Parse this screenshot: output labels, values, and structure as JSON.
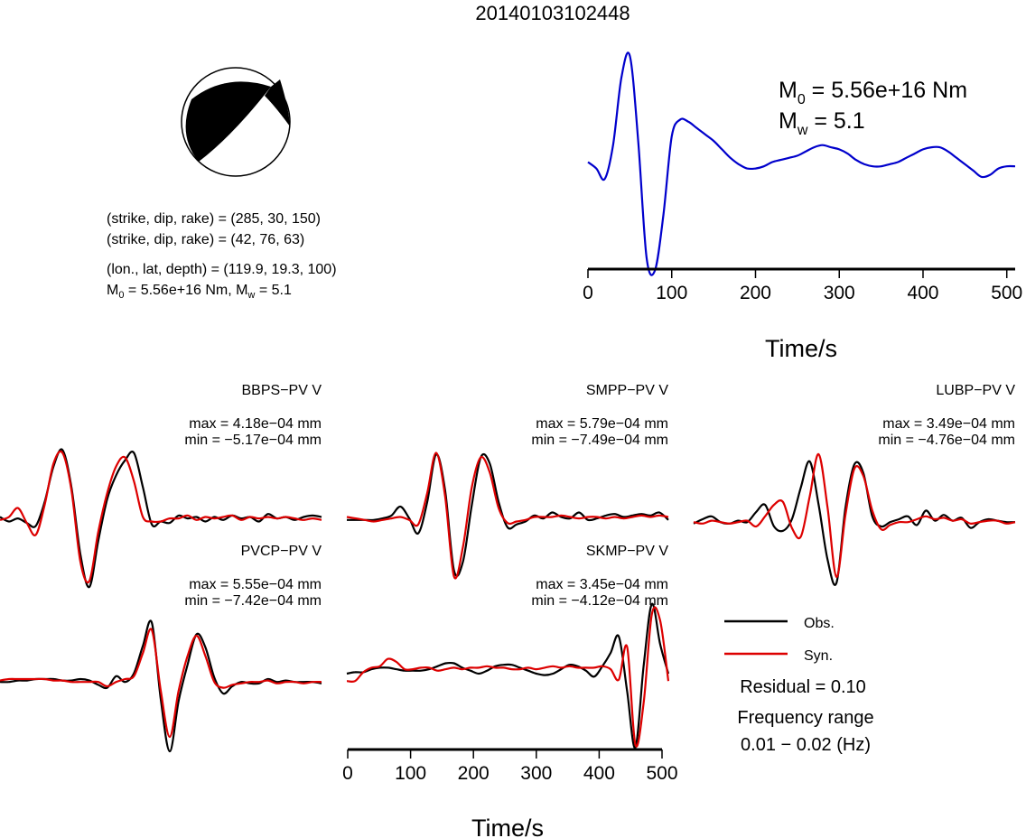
{
  "title": "20140103102448",
  "mechanism": {
    "line1": "(strike, dip, rake) = (285, 30, 150)",
    "line2": "(strike, dip, rake) = (42, 76, 63)",
    "location": "(lon., lat, depth) = (119.9, 19.3, 100)",
    "moment_line": {
      "m0_sym": "M",
      "m0_sub": "0",
      "m0_val": " = 5.56e+16 Nm, ",
      "mw_sym": "M",
      "mw_sub": "w",
      "mw_val": " = 5.1"
    }
  },
  "stf": {
    "m0": {
      "sym": "M",
      "sub": "0",
      "val": " = 5.56e+16 Nm"
    },
    "mw": {
      "sym": "M",
      "sub": "w",
      "val": " = 5.1"
    },
    "xlabel": "Time/s",
    "ticks": [
      "0",
      "100",
      "200",
      "300",
      "400",
      "500"
    ]
  },
  "legend": {
    "obs": "Obs.",
    "syn": "Syn.",
    "residual": "Residual = 0.10",
    "freq1": "Frequency range",
    "freq2": "0.01 − 0.02 (Hz)"
  },
  "bottom_axis": {
    "xlabel": "Time/s",
    "ticks": [
      "0",
      "100",
      "200",
      "300",
      "400",
      "500"
    ]
  },
  "colors": {
    "obs": "#000000",
    "syn": "#dd0000",
    "stf": "#0000cc"
  },
  "chart_data": [
    {
      "type": "line",
      "title": "",
      "xlabel": "Time/s",
      "ylabel": "",
      "xlim": [
        0,
        510
      ],
      "series": [
        {
          "x": [
            0,
            10,
            20,
            30,
            40,
            50,
            60,
            70,
            80,
            90,
            100,
            110,
            120,
            130,
            140,
            150,
            160,
            170,
            180,
            190,
            200,
            210,
            220,
            230,
            240,
            250,
            260,
            270,
            280,
            290,
            300,
            310,
            320,
            330,
            340,
            350,
            360,
            370,
            380,
            390,
            400,
            410,
            420,
            430,
            440,
            450,
            460,
            470,
            480,
            490,
            500,
            510
          ],
          "y": [
            0.5,
            0.47,
            0.42,
            0.58,
            0.9,
            1.0,
            0.6,
            0.05,
            -0.01,
            0.25,
            0.62,
            0.7,
            0.69,
            0.66,
            0.63,
            0.6,
            0.56,
            0.52,
            0.49,
            0.47,
            0.47,
            0.48,
            0.5,
            0.51,
            0.52,
            0.53,
            0.55,
            0.57,
            0.58,
            0.57,
            0.56,
            0.54,
            0.51,
            0.49,
            0.48,
            0.48,
            0.49,
            0.5,
            0.52,
            0.54,
            0.56,
            0.57,
            0.57,
            0.55,
            0.52,
            0.49,
            0.46,
            0.43,
            0.44,
            0.47,
            0.48,
            0.48
          ]
        }
      ]
    },
    {
      "type": "line",
      "name_label": "BBPS−PV V",
      "max": "max = 4.18e−04 mm",
      "min": "min = −5.17e−04 mm",
      "obs": [
        0.5,
        0.47,
        0.49,
        0.46,
        0.44,
        0.6,
        0.84,
        0.95,
        0.7,
        0.25,
        0.03,
        0.34,
        0.62,
        0.78,
        0.88,
        0.93,
        0.7,
        0.45,
        0.47,
        0.46,
        0.51,
        0.49,
        0.5,
        0.47,
        0.5,
        0.48,
        0.51,
        0.49,
        0.5,
        0.47,
        0.52,
        0.49,
        0.5,
        0.48,
        0.5,
        0.51,
        0.5
      ],
      "syn": [
        0.48,
        0.5,
        0.56,
        0.46,
        0.38,
        0.58,
        0.86,
        0.93,
        0.68,
        0.2,
        0.07,
        0.4,
        0.66,
        0.84,
        0.9,
        0.74,
        0.5,
        0.47,
        0.47,
        0.49,
        0.49,
        0.51,
        0.48,
        0.5,
        0.49,
        0.5,
        0.51,
        0.48,
        0.5,
        0.49,
        0.5,
        0.49,
        0.5,
        0.49,
        0.48,
        0.49,
        0.48
      ]
    },
    {
      "type": "line",
      "name_label": "SMPP−PV V",
      "max": "max = 5.79e−04 mm",
      "min": "min = −7.49e−04 mm",
      "obs": [
        0.48,
        0.48,
        0.48,
        0.48,
        0.49,
        0.51,
        0.57,
        0.49,
        0.39,
        0.6,
        0.92,
        0.68,
        0.14,
        0.2,
        0.58,
        0.9,
        0.86,
        0.6,
        0.43,
        0.45,
        0.47,
        0.51,
        0.49,
        0.53,
        0.5,
        0.49,
        0.53,
        0.48,
        0.49,
        0.51,
        0.52,
        0.5,
        0.51,
        0.52,
        0.51,
        0.53,
        0.48
      ],
      "syn": [
        0.5,
        0.49,
        0.48,
        0.47,
        0.48,
        0.49,
        0.5,
        0.48,
        0.45,
        0.66,
        0.93,
        0.64,
        0.1,
        0.3,
        0.7,
        0.9,
        0.8,
        0.56,
        0.46,
        0.47,
        0.48,
        0.5,
        0.5,
        0.5,
        0.51,
        0.5,
        0.49,
        0.5,
        0.5,
        0.49,
        0.5,
        0.49,
        0.5,
        0.51,
        0.5,
        0.51,
        0.5
      ]
    },
    {
      "type": "line",
      "name_label": "LUBP−PV V",
      "max": "max = 3.49e−04 mm",
      "min": "min = −4.76e−04 mm",
      "obs": [
        0.47,
        0.5,
        0.52,
        0.48,
        0.47,
        0.49,
        0.48,
        0.55,
        0.6,
        0.45,
        0.42,
        0.5,
        0.72,
        0.9,
        0.6,
        0.22,
        0.06,
        0.58,
        0.88,
        0.82,
        0.52,
        0.45,
        0.48,
        0.5,
        0.52,
        0.46,
        0.56,
        0.49,
        0.53,
        0.49,
        0.51,
        0.44,
        0.48,
        0.5,
        0.49,
        0.48,
        0.48
      ],
      "syn": [
        0.48,
        0.47,
        0.49,
        0.48,
        0.47,
        0.48,
        0.49,
        0.45,
        0.52,
        0.6,
        0.62,
        0.44,
        0.38,
        0.66,
        0.95,
        0.58,
        0.1,
        0.53,
        0.85,
        0.8,
        0.56,
        0.43,
        0.46,
        0.48,
        0.48,
        0.5,
        0.52,
        0.5,
        0.51,
        0.49,
        0.5,
        0.47,
        0.48,
        0.49,
        0.49,
        0.47,
        0.48
      ]
    },
    {
      "type": "line",
      "name_label": "PVCP−PV V",
      "max": "max = 5.55e−04 mm",
      "min": "min = −7.42e−04 mm",
      "obs": [
        0.48,
        0.48,
        0.49,
        0.49,
        0.5,
        0.5,
        0.5,
        0.49,
        0.49,
        0.5,
        0.49,
        0.46,
        0.44,
        0.52,
        0.48,
        0.54,
        0.73,
        0.89,
        0.36,
        0.0,
        0.35,
        0.6,
        0.81,
        0.72,
        0.51,
        0.4,
        0.45,
        0.48,
        0.47,
        0.47,
        0.5,
        0.48,
        0.49,
        0.48,
        0.48,
        0.48,
        0.47
      ],
      "syn": [
        0.49,
        0.5,
        0.5,
        0.5,
        0.5,
        0.5,
        0.49,
        0.49,
        0.48,
        0.48,
        0.48,
        0.48,
        0.45,
        0.48,
        0.5,
        0.52,
        0.68,
        0.84,
        0.42,
        0.1,
        0.42,
        0.66,
        0.8,
        0.66,
        0.48,
        0.44,
        0.46,
        0.47,
        0.48,
        0.48,
        0.49,
        0.47,
        0.48,
        0.48,
        0.47,
        0.48,
        0.48
      ]
    },
    {
      "type": "line",
      "name_label": "SKMP−PV V",
      "max": "max = 3.45e−04 mm",
      "min": "min = −4.12e−04 mm",
      "xlabel": "Time/s",
      "xlim": [
        0,
        510
      ],
      "obs": [
        0.5,
        0.51,
        0.51,
        0.53,
        0.54,
        0.54,
        0.53,
        0.52,
        0.52,
        0.52,
        0.53,
        0.55,
        0.57,
        0.57,
        0.54,
        0.52,
        0.5,
        0.52,
        0.55,
        0.56,
        0.56,
        0.54,
        0.52,
        0.5,
        0.49,
        0.5,
        0.53,
        0.56,
        0.55,
        0.52,
        0.48,
        0.55,
        0.64,
        0.75,
        0.38,
        0.0,
        0.55,
        0.97,
        0.7,
        0.5
      ],
      "syn": [
        0.45,
        0.45,
        0.51,
        0.54,
        0.55,
        0.6,
        0.58,
        0.53,
        0.53,
        0.54,
        0.54,
        0.52,
        0.53,
        0.54,
        0.53,
        0.54,
        0.54,
        0.55,
        0.54,
        0.54,
        0.53,
        0.53,
        0.54,
        0.53,
        0.54,
        0.55,
        0.54,
        0.55,
        0.54,
        0.54,
        0.54,
        0.55,
        0.53,
        0.46,
        0.68,
        0.02,
        0.3,
        0.9,
        0.86,
        0.45
      ]
    }
  ]
}
